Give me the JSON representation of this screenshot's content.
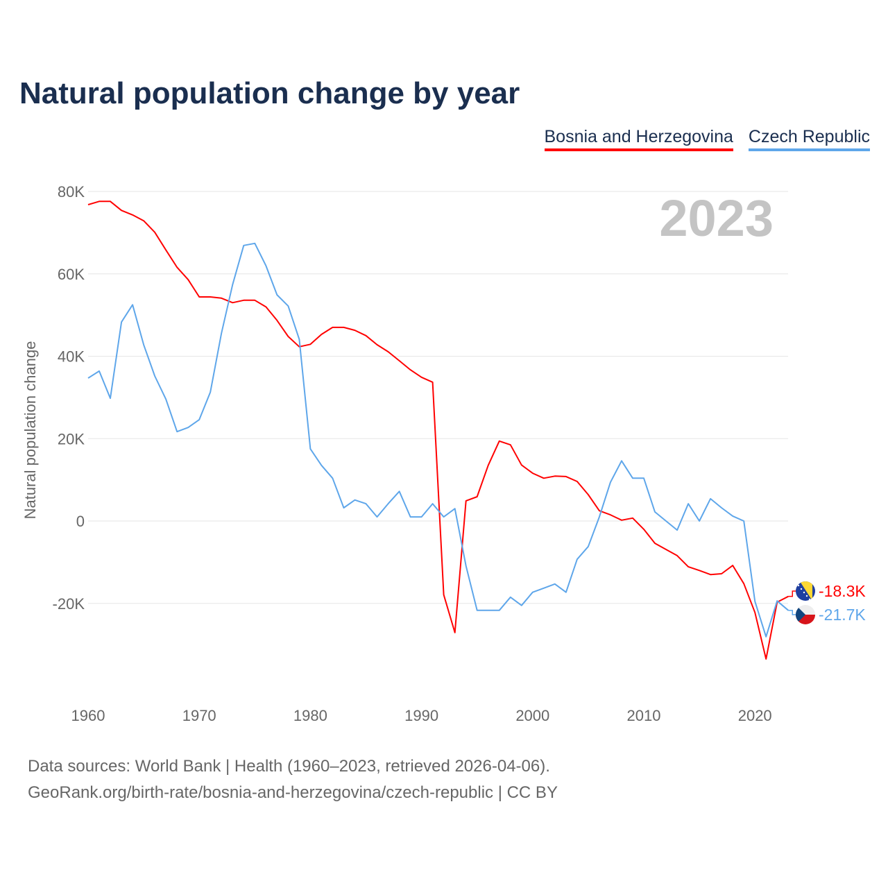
{
  "chart_data": {
    "type": "line",
    "title": "Natural population change by year",
    "xlabel": "",
    "ylabel": "Natural population change",
    "year_watermark": "2023",
    "xlim": [
      1960,
      2023
    ],
    "ylim": [
      -35000,
      80000
    ],
    "x_ticks": [
      "1960",
      "1970",
      "1980",
      "1990",
      "2000",
      "2010",
      "2020"
    ],
    "x_tick_values": [
      1960,
      1970,
      1980,
      1990,
      2000,
      2010,
      2020
    ],
    "y_ticks": [
      "80K",
      "60K",
      "40K",
      "20K",
      "0",
      "-20K"
    ],
    "y_tick_values": [
      80000,
      60000,
      40000,
      20000,
      0,
      -20000
    ],
    "grid": true,
    "legend_placement": "top-right",
    "x": [
      1960,
      1961,
      1962,
      1963,
      1964,
      1965,
      1966,
      1967,
      1968,
      1969,
      1970,
      1971,
      1972,
      1973,
      1974,
      1975,
      1976,
      1977,
      1978,
      1979,
      1980,
      1981,
      1982,
      1983,
      1984,
      1985,
      1986,
      1987,
      1988,
      1989,
      1990,
      1991,
      1992,
      1993,
      1994,
      1995,
      1996,
      1997,
      1998,
      1999,
      2000,
      2001,
      2002,
      2003,
      2004,
      2005,
      2006,
      2007,
      2008,
      2009,
      2010,
      2011,
      2012,
      2013,
      2014,
      2015,
      2016,
      2017,
      2018,
      2019,
      2020,
      2021,
      2022,
      2023
    ],
    "series": [
      {
        "name": "Bosnia and Herzegovina",
        "color": "#ff0000",
        "end_label": "-18.3K",
        "flag": "bosnia-flag",
        "values": [
          76800,
          77600,
          77600,
          75400,
          74300,
          72900,
          70100,
          65800,
          61600,
          58600,
          54400,
          54400,
          54100,
          53000,
          53600,
          53600,
          52000,
          48700,
          44800,
          42300,
          42900,
          45300,
          47000,
          47000,
          46300,
          45000,
          42800,
          41100,
          38900,
          36700,
          34900,
          33700,
          -17900,
          -27100,
          4900,
          5900,
          13500,
          19400,
          18500,
          13600,
          11600,
          10400,
          10900,
          10800,
          9600,
          6400,
          2500,
          1500,
          200,
          700,
          -2000,
          -5400,
          -6900,
          -8400,
          -11100,
          -12000,
          -13000,
          -12800,
          -10800,
          -15200,
          -22200,
          -33500,
          -19700,
          -18300
        ]
      },
      {
        "name": "Czech Republic",
        "color": "#5ea6ea",
        "end_label": "-21.7K",
        "flag": "czech-flag",
        "values": [
          34700,
          36400,
          29800,
          48300,
          52500,
          42800,
          35200,
          29600,
          21700,
          22700,
          24600,
          31300,
          45600,
          57400,
          66900,
          67400,
          62000,
          54900,
          52200,
          44100,
          17500,
          13500,
          10400,
          3200,
          5100,
          4200,
          1000,
          4200,
          7200,
          1000,
          1000,
          4200,
          1000,
          3000,
          -10900,
          -21700,
          -21700,
          -21700,
          -18500,
          -20500,
          -17300,
          -16300,
          -15300,
          -17300,
          -9300,
          -6200,
          1000,
          9400,
          14600,
          10400,
          10400,
          2200,
          0,
          -2200,
          4200,
          0,
          5400,
          3200,
          1200,
          0,
          -19500,
          -28100,
          -19400,
          -21700
        ]
      }
    ]
  },
  "footer": {
    "line1": "Data sources: World Bank | Health (1960–2023, retrieved 2026-04-06).",
    "line2": "GeoRank.org/birth-rate/bosnia-and-herzegovina/czech-republic | CC BY"
  }
}
